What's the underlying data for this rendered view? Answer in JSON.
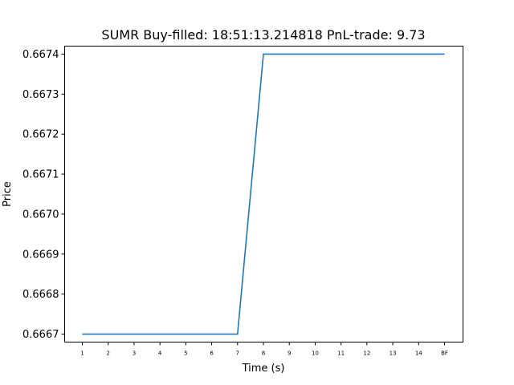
{
  "chart_data": {
    "type": "line",
    "title": "SUMR  Buy-filled:  18:51:13.214818  PnL-trade:  9.73",
    "xlabel": "Time (s)",
    "ylabel": "Price",
    "categories": [
      "1",
      "2",
      "3",
      "4",
      "5",
      "6",
      "7",
      "8",
      "9",
      "10",
      "11",
      "12",
      "13",
      "14",
      "BF"
    ],
    "ylim": [
      0.66668,
      0.66742
    ],
    "yticks": [
      "0.6667",
      "0.6668",
      "0.6669",
      "0.6670",
      "0.6671",
      "0.6672",
      "0.6673",
      "0.6674"
    ],
    "grid": false,
    "series": [
      {
        "values": [
          0.6667,
          0.6667,
          0.6667,
          0.6667,
          0.6667,
          0.6667,
          0.6667,
          0.6674,
          0.6674,
          0.6674,
          0.6674,
          0.6674,
          0.6674,
          0.6674,
          0.6674
        ],
        "color": "#1f77b4"
      }
    ]
  }
}
